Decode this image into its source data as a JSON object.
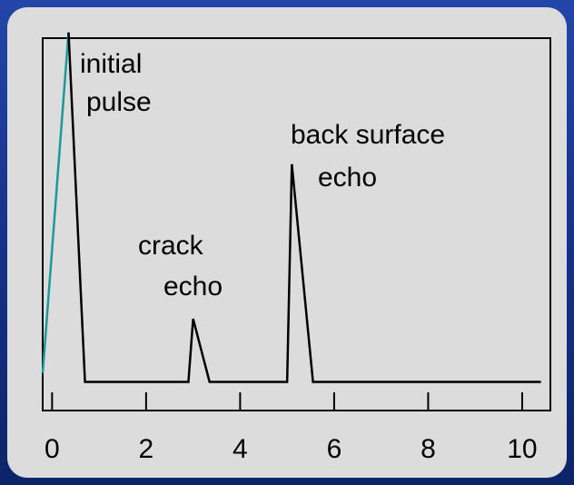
{
  "chart_data": {
    "type": "line",
    "series": [
      {
        "color": "#1a9a9a",
        "x": [
          -0.2,
          0.35
        ],
        "values": [
          0.3,
          12.2
        ]
      },
      {
        "color": "#000000",
        "x": [
          0.35,
          0.7,
          2.9,
          3.0,
          3.35,
          5.0,
          5.1,
          5.55,
          10.4
        ],
        "values": [
          12.2,
          0,
          0,
          2.2,
          0,
          0,
          7.6,
          0,
          0
        ]
      }
    ],
    "xlim": [
      -0.2,
      10.6
    ],
    "ylim": [
      -1,
      12
    ],
    "xticks": [
      0,
      2,
      4,
      6,
      8,
      10
    ],
    "annotations": [
      [
        "initial",
        "pulse"
      ],
      [
        "crack",
        "echo"
      ],
      [
        "back surface",
        "echo"
      ]
    ]
  }
}
